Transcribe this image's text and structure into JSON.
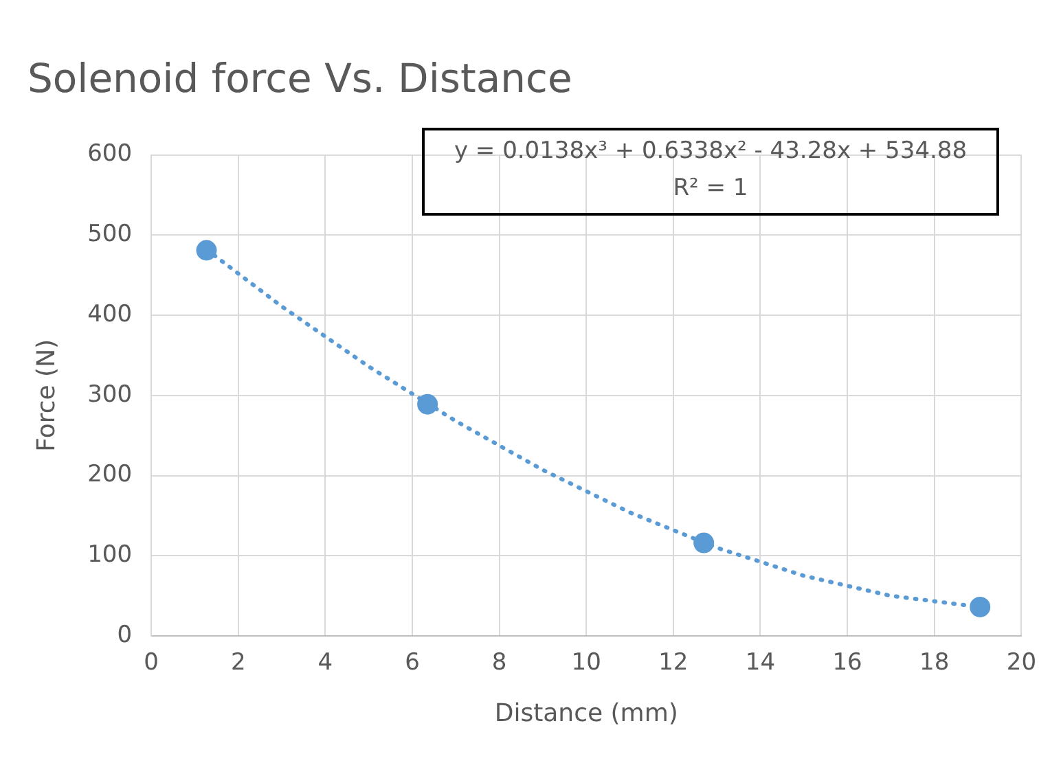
{
  "chart_data": {
    "type": "scatter",
    "title": "Solenoid force Vs. Distance",
    "xlabel": "Distance (mm)",
    "ylabel": "Force (N)",
    "annotations": [
      "y = 0.0138x³ + 0.6338x² - 43.28x + 534.88",
      "R² = 1"
    ],
    "x": [
      1.27,
      6.35,
      12.7,
      19.05
    ],
    "series": [
      {
        "color": "#5b9bd5",
        "values": [
          481,
          289,
          116,
          36
        ],
        "marker": "circle"
      },
      {
        "type": "line",
        "color": "#5b9bd5",
        "line_style": "dotted",
        "marker": "none",
        "x": [
          1.27,
          3,
          5,
          7,
          9,
          11,
          13,
          15,
          17,
          19.05
        ],
        "values": [
          482,
          411,
          336,
          268,
          207,
          154,
          110,
          75,
          50,
          36
        ]
      }
    ],
    "xlim": [
      0,
      20
    ],
    "xticks": [
      0,
      2,
      4,
      6,
      8,
      10,
      12,
      14,
      16,
      18,
      20
    ],
    "ylim": [
      0,
      600
    ],
    "yticks": [
      0,
      100,
      200,
      300,
      400,
      500,
      600
    ],
    "grid": true,
    "legend": false
  }
}
